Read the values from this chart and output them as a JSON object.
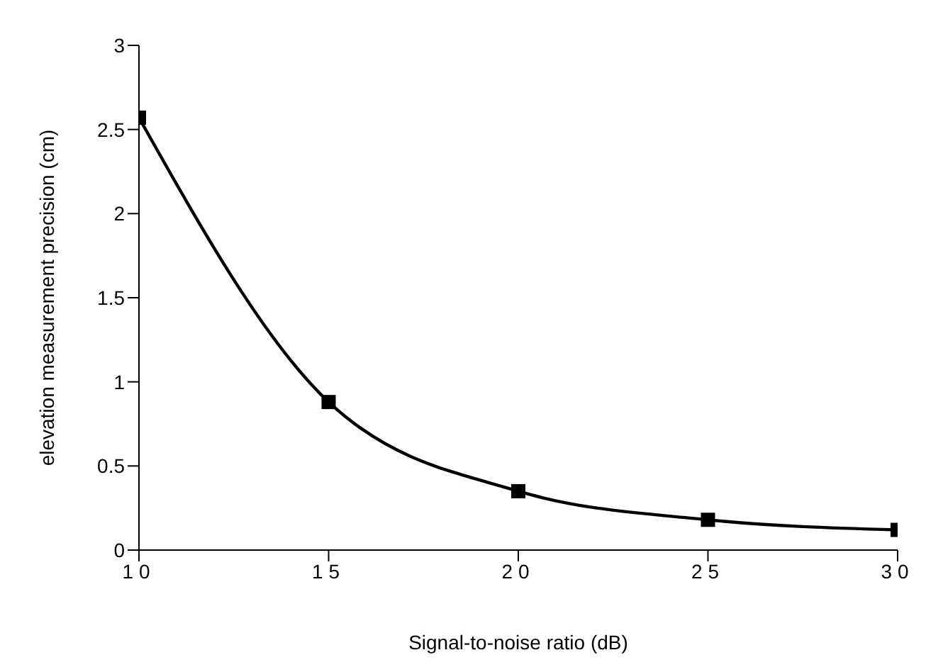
{
  "chart_data": {
    "type": "line",
    "xlabel": "Signal-to-noise ratio  (dB)",
    "ylabel": "elevation  measurement  precision  (cm)",
    "x": [
      10,
      15,
      20,
      25,
      30
    ],
    "series": [
      {
        "color": "#000000",
        "values": [
          2.57,
          0.88,
          0.35,
          0.18,
          0.12
        ]
      }
    ],
    "xlim": [
      10,
      30
    ],
    "xticks": [
      10,
      15,
      20,
      25,
      30
    ],
    "ylim": [
      0,
      3
    ],
    "yticks": [
      0,
      0.5,
      1,
      1.5,
      2,
      2.5,
      3
    ],
    "marker": "square",
    "line_style": "solid",
    "grid": false,
    "legend": false
  }
}
